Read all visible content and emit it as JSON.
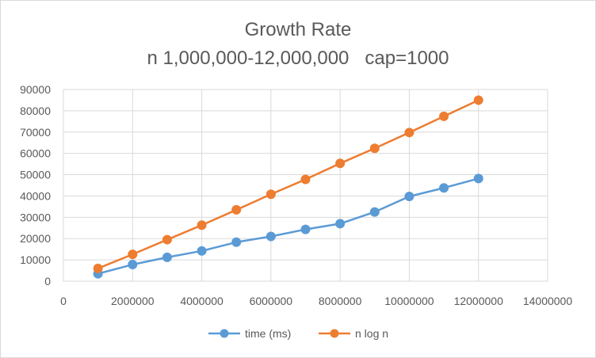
{
  "chart_data": {
    "type": "scatter",
    "title": "Growth Rate",
    "subtitle": "n 1,000,000-12,000,000   cap=1000",
    "xlabel": "",
    "ylabel": "",
    "xlim": [
      0,
      14000000
    ],
    "ylim": [
      0,
      90000
    ],
    "x_ticks": [
      "0",
      "2000000",
      "4000000",
      "6000000",
      "8000000",
      "10000000",
      "12000000",
      "14000000"
    ],
    "y_ticks": [
      "0",
      "10000",
      "20000",
      "30000",
      "40000",
      "50000",
      "60000",
      "70000",
      "80000",
      "90000"
    ],
    "grid": true,
    "legend_position": "bottom",
    "x": [
      1000000,
      2000000,
      3000000,
      4000000,
      5000000,
      6000000,
      7000000,
      8000000,
      9000000,
      10000000,
      11000000,
      12000000
    ],
    "series": [
      {
        "name": "time (ms)",
        "color": "#5b9bd5",
        "values": [
          3500,
          7800,
          11200,
          14200,
          18300,
          21000,
          24300,
          27000,
          32500,
          39800,
          43800,
          48200
        ]
      },
      {
        "name": "n log n",
        "color": "#ed7d31",
        "values": [
          6000,
          12600,
          19500,
          26300,
          33500,
          40800,
          47800,
          55300,
          62400,
          69800,
          77400,
          85000
        ]
      }
    ]
  }
}
